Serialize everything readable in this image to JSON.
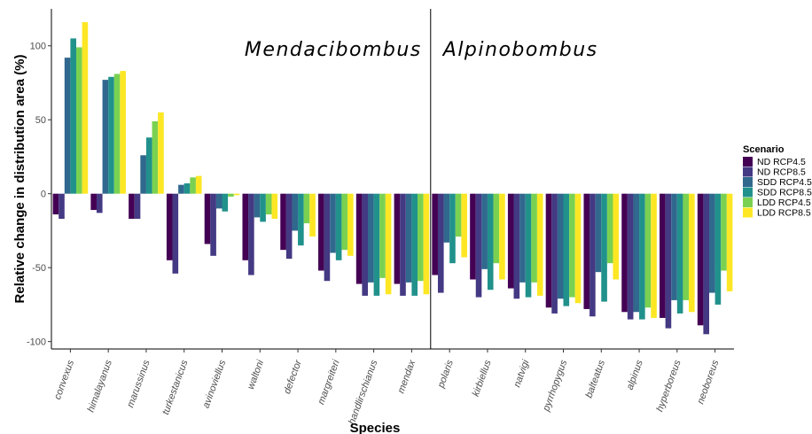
{
  "chart_data": {
    "type": "bar",
    "xlabel": "Species",
    "ylabel": "Relative change in distribution area (%)",
    "ylim": [
      -105,
      125
    ],
    "yticks": [
      100,
      50,
      0,
      -50,
      -100
    ],
    "grid": false,
    "legend": {
      "title": "Scenario",
      "placement": "right"
    },
    "group_labels": [
      "Mendacibombus",
      "Alpinobombus"
    ],
    "categories": [
      "convexus",
      "himalayanus",
      "marussinus",
      "turkestanicus",
      "avinoviellus",
      "waltoni",
      "defector",
      "margreiteri",
      "handlirschianus",
      "mendax",
      "polaris",
      "kirbiellus",
      "natvigi",
      "pyrrhopygus",
      "balteatus",
      "alpinus",
      "hyperboreus",
      "neoboreus"
    ],
    "series": [
      {
        "name": "ND RCP4.5",
        "color": "#440154",
        "values": [
          -14,
          -11,
          -17,
          -45,
          -34,
          -45,
          -38,
          -52,
          -61,
          -61,
          -55,
          -58,
          -64,
          -77,
          -78,
          -80,
          -84,
          -89
        ]
      },
      {
        "name": "ND RCP8.5",
        "color": "#443983",
        "values": [
          -17,
          -13,
          -17,
          -54,
          -42,
          -55,
          -44,
          -59,
          -69,
          -69,
          -67,
          -70,
          -71,
          -81,
          -83,
          -85,
          -91,
          -95
        ]
      },
      {
        "name": "SDD RCP4.5",
        "color": "#31688e",
        "values": [
          92,
          77,
          26,
          6,
          -10,
          -16,
          -25,
          -40,
          -60,
          -60,
          -33,
          -51,
          -60,
          -71,
          -53,
          -80,
          -72,
          -67
        ]
      },
      {
        "name": "SDD RCP8.5",
        "color": "#21918c",
        "values": [
          105,
          79,
          38,
          7,
          -12,
          -19,
          -35,
          -45,
          -69,
          -69,
          -47,
          -65,
          -70,
          -76,
          -73,
          -85,
          -81,
          -75
        ]
      },
      {
        "name": "LDD RCP4.5",
        "color": "#7ad151",
        "values": [
          99,
          81,
          49,
          11,
          -2,
          -14,
          -20,
          -38,
          -57,
          -59,
          -29,
          -47,
          -60,
          -70,
          -47,
          -77,
          -72,
          -52
        ]
      },
      {
        "name": "LDD RCP8.5",
        "color": "#fde725",
        "values": [
          116,
          83,
          55,
          12,
          -1,
          -17,
          -29,
          -42,
          -68,
          -68,
          -43,
          -58,
          -69,
          -74,
          -58,
          -84,
          -80,
          -66
        ]
      }
    ]
  }
}
